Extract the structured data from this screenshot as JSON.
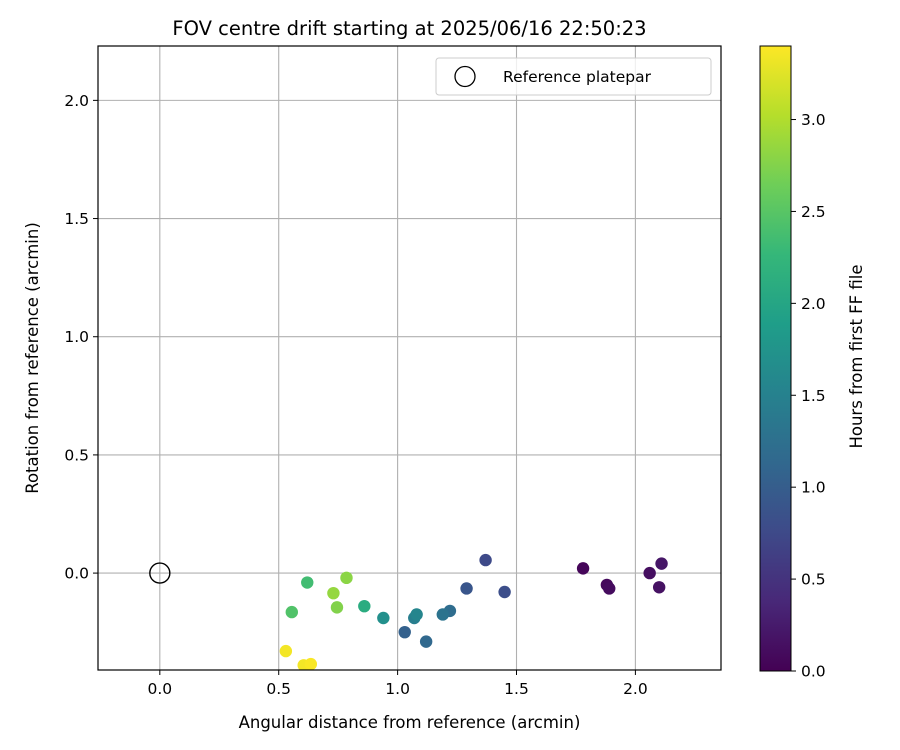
{
  "chart_data": {
    "type": "scatter",
    "title": "FOV centre drift starting at 2025/06/16 22:50:23",
    "xlabel": "Angular distance from reference (arcmin)",
    "ylabel": "Rotation from reference (arcmin)",
    "xlim": [
      -0.26,
      2.36
    ],
    "ylim": [
      -0.41,
      2.23
    ],
    "xticks": [
      "0.0",
      "0.5",
      "1.0",
      "1.5",
      "2.0"
    ],
    "yticks": [
      "0.0",
      "0.5",
      "1.0",
      "1.5",
      "2.0"
    ],
    "grid": true,
    "legend": {
      "position": "upper-right",
      "entries": [
        "Reference platepar"
      ]
    },
    "reference_point": {
      "x": 0.0,
      "y": 0.0
    },
    "colorbar": {
      "label": "Hours from first FF file",
      "colormap": "viridis",
      "range": [
        0.0,
        3.4
      ],
      "ticks": [
        "0.0",
        "0.5",
        "1.0",
        "1.5",
        "2.0",
        "2.5",
        "3.0"
      ]
    },
    "points": [
      {
        "x": 1.78,
        "y": 0.02,
        "hours": 0.05
      },
      {
        "x": 1.88,
        "y": -0.05,
        "hours": 0.08
      },
      {
        "x": 1.89,
        "y": -0.065,
        "hours": 0.1
      },
      {
        "x": 2.06,
        "y": 0.0,
        "hours": 0.13
      },
      {
        "x": 2.1,
        "y": -0.06,
        "hours": 0.16
      },
      {
        "x": 2.11,
        "y": 0.04,
        "hours": 0.2
      },
      {
        "x": 1.37,
        "y": 0.055,
        "hours": 0.75
      },
      {
        "x": 1.45,
        "y": -0.08,
        "hours": 0.8
      },
      {
        "x": 1.29,
        "y": -0.065,
        "hours": 0.9
      },
      {
        "x": 1.03,
        "y": -0.25,
        "hours": 1.05
      },
      {
        "x": 1.12,
        "y": -0.29,
        "hours": 1.15
      },
      {
        "x": 1.22,
        "y": -0.16,
        "hours": 1.2
      },
      {
        "x": 1.19,
        "y": -0.175,
        "hours": 1.3
      },
      {
        "x": 1.07,
        "y": -0.19,
        "hours": 1.45
      },
      {
        "x": 1.08,
        "y": -0.175,
        "hours": 1.55
      },
      {
        "x": 0.94,
        "y": -0.19,
        "hours": 1.7
      },
      {
        "x": 0.86,
        "y": -0.14,
        "hours": 2.1
      },
      {
        "x": 0.62,
        "y": -0.04,
        "hours": 2.35
      },
      {
        "x": 0.555,
        "y": -0.165,
        "hours": 2.45
      },
      {
        "x": 0.745,
        "y": -0.145,
        "hours": 2.75
      },
      {
        "x": 0.785,
        "y": -0.02,
        "hours": 2.8
      },
      {
        "x": 0.73,
        "y": -0.085,
        "hours": 2.85
      },
      {
        "x": 0.53,
        "y": -0.33,
        "hours": 3.35
      },
      {
        "x": 0.605,
        "y": -0.39,
        "hours": 3.35
      },
      {
        "x": 0.635,
        "y": -0.385,
        "hours": 3.38
      }
    ]
  }
}
